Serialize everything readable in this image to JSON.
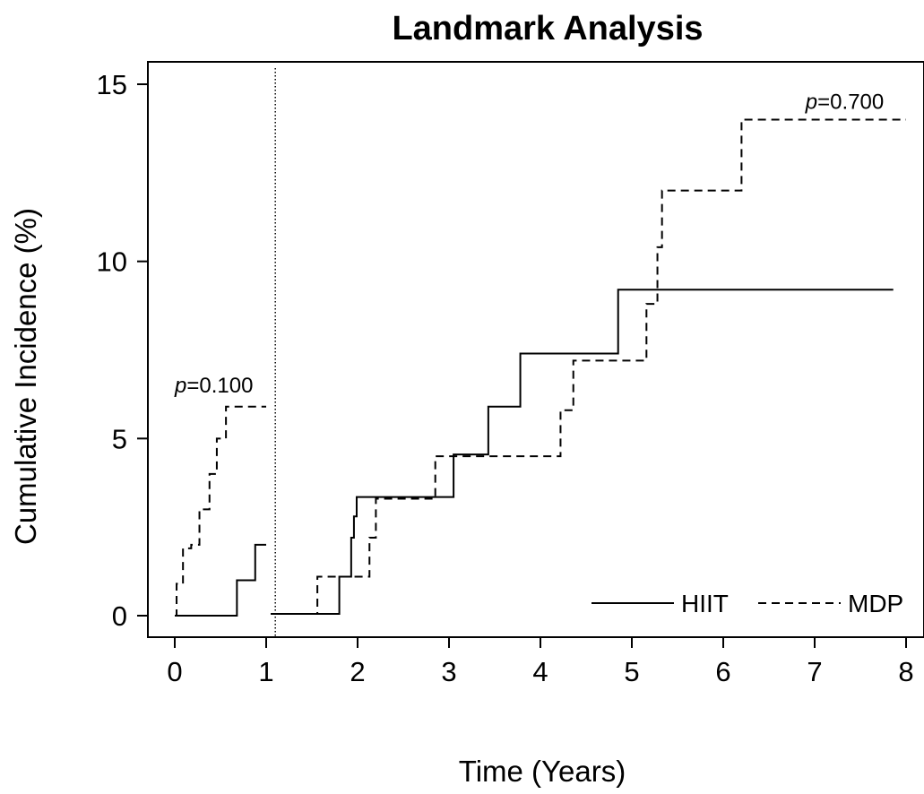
{
  "chart_data": {
    "type": "line",
    "title": "Landmark Analysis",
    "xlabel": "Time (Years)",
    "ylabel": "Cumulative Incidence (%)",
    "xlim": [
      0,
      8
    ],
    "ylim": [
      0,
      15
    ],
    "xticks": [
      "0",
      "1",
      "2",
      "3",
      "4",
      "5",
      "6",
      "7",
      "8"
    ],
    "yticks": [
      "0",
      "5",
      "10",
      "15"
    ],
    "grid": false,
    "landmark_time": 1.1,
    "legend": {
      "placement": "bottom-right",
      "entries": [
        "HIIT",
        "MDP"
      ]
    },
    "annotations": [
      {
        "italic": "p",
        "rest": "=0.100",
        "x": 0,
        "y": 6.3
      },
      {
        "italic": "p",
        "rest": "=0.700",
        "x": 6.9,
        "y": 14.3
      }
    ],
    "series": [
      {
        "name": "HIIT",
        "line_style": "solid",
        "segments": [
          {
            "x": [
              0,
              0.68,
              0.88,
              1.0
            ],
            "y": [
              0,
              1.0,
              2.0,
              2.0
            ]
          },
          {
            "x": [
              1.05,
              1.8,
              1.93,
              1.96,
              1.99,
              3.05,
              3.43,
              3.78,
              4.85,
              7.86
            ],
            "y": [
              0.05,
              1.1,
              2.2,
              2.8,
              3.35,
              4.55,
              5.9,
              7.4,
              9.2,
              9.2
            ]
          }
        ]
      },
      {
        "name": "MDP",
        "line_style": "dashed",
        "segments": [
          {
            "x": [
              0,
              0.02,
              0.09,
              0.18,
              0.27,
              0.38,
              0.46,
              0.56,
              1.0
            ],
            "y": [
              0,
              0.9,
              1.9,
              2.0,
              3.0,
              4.0,
              5.0,
              5.9,
              5.9
            ]
          },
          {
            "x": [
              1.05,
              1.56,
              2.05,
              2.13,
              2.2,
              2.85,
              4.22,
              4.36,
              5.16,
              5.28,
              5.33,
              6.2,
              8.0
            ],
            "y": [
              0.05,
              1.1,
              1.1,
              2.2,
              3.3,
              4.5,
              5.8,
              7.2,
              8.8,
              10.4,
              12.0,
              14.0,
              14.0
            ]
          }
        ]
      }
    ]
  }
}
